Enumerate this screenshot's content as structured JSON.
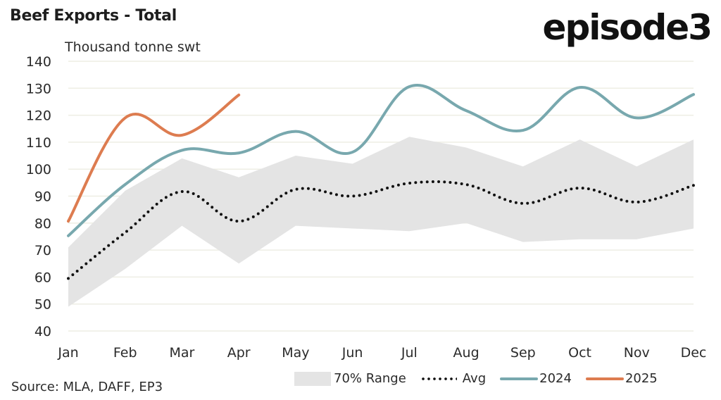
{
  "header": {
    "title": "Beef Exports - Total",
    "logo": "episode3",
    "unit_label": "Thousand tonne swt"
  },
  "footer": {
    "source": "Source: MLA, DAFF, EP3"
  },
  "colors": {
    "range": "#e4e4e4",
    "avg": "#111111",
    "s2024": "#78a8ae",
    "s2025": "#dd7c50",
    "grid": "#eeeee4"
  },
  "chart_data": {
    "type": "line",
    "title": "Beef Exports - Total",
    "ylabel": "Thousand tonne swt",
    "xlabel": "",
    "ylim": [
      40,
      140
    ],
    "yticks": [
      140,
      130,
      120,
      110,
      100,
      90,
      80,
      70,
      60,
      50,
      40
    ],
    "grid": true,
    "legend_position": "bottom-right",
    "categories": [
      "Jan",
      "Feb",
      "Mar",
      "Apr",
      "May",
      "Jun",
      "Jul",
      "Aug",
      "Sep",
      "Oct",
      "Nov",
      "Dec"
    ],
    "range": {
      "name": "70% Range",
      "upper": [
        71,
        92,
        104,
        97,
        105,
        102,
        112,
        108,
        101,
        111,
        101,
        111
      ],
      "lower": [
        49,
        63,
        79,
        65,
        79,
        78,
        77,
        80,
        73,
        74,
        74,
        78
      ]
    },
    "series": [
      {
        "name": "Avg",
        "style": "dotted",
        "values": [
          59.5,
          76.5,
          91.7,
          80.7,
          92.5,
          90,
          94.8,
          94.3,
          87.3,
          93,
          87.8,
          94
        ]
      },
      {
        "name": "2024",
        "style": "solid",
        "values": [
          75.3,
          94.3,
          107,
          106,
          114,
          106.3,
          130.6,
          121.7,
          114.4,
          130.3,
          119,
          127.7
        ]
      },
      {
        "name": "2025",
        "style": "solid",
        "values": [
          80.7,
          119,
          112.6,
          127.5
        ]
      }
    ],
    "legend": [
      "70% Range",
      "Avg",
      "2024",
      "2025"
    ]
  }
}
